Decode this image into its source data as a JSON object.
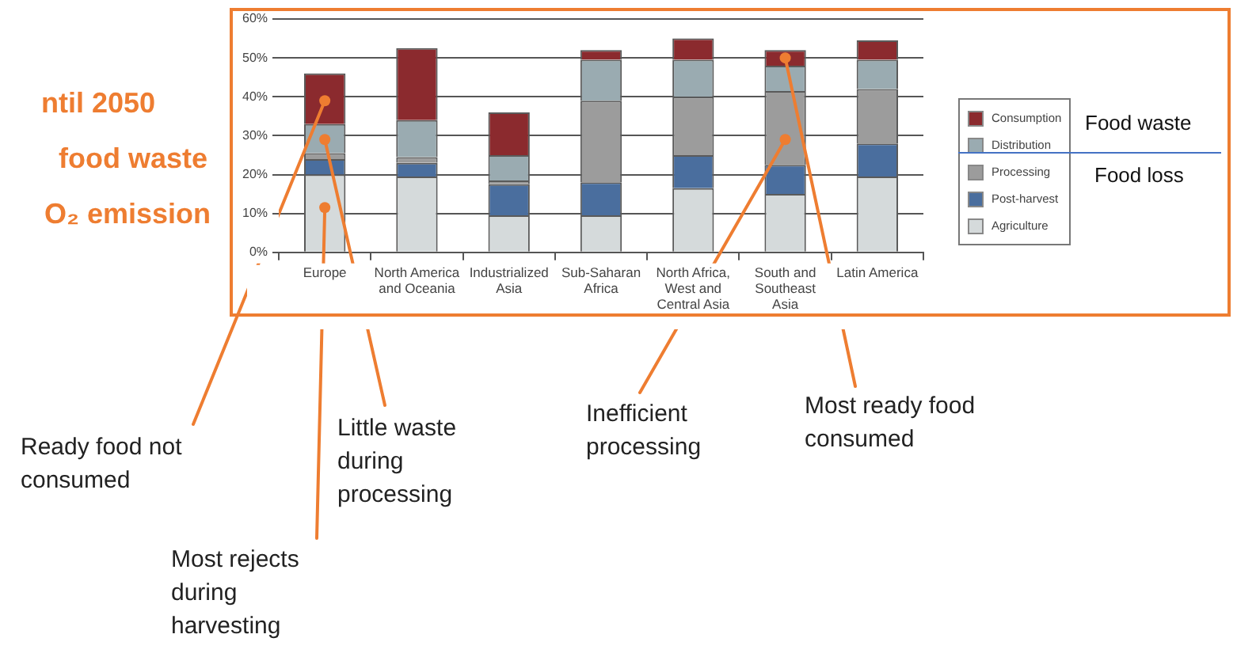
{
  "chart_data": {
    "type": "bar",
    "stacked": true,
    "categories": [
      "Europe",
      "North America and Oceania",
      "Industrialized Asia",
      "Sub-Saharan Africa",
      "North Africa, West and Central Asia",
      "South and Southeast Asia",
      "Latin America"
    ],
    "series": [
      {
        "name": "Agriculture",
        "color": "#d5dadb",
        "values": [
          20,
          19.5,
          9.5,
          9.5,
          16.5,
          15,
          19.5
        ]
      },
      {
        "name": "Post-harvest",
        "color": "#4a6e9e",
        "values": [
          4,
          3.5,
          8,
          8.5,
          8.5,
          7.5,
          8.5
        ]
      },
      {
        "name": "Processing",
        "color": "#9c9c9c",
        "values": [
          1.5,
          1.5,
          1,
          21,
          15,
          19,
          14
        ]
      },
      {
        "name": "Distribution",
        "color": "#9aabb1",
        "values": [
          7.5,
          9.5,
          6.5,
          10.5,
          9.5,
          6.5,
          7.5
        ]
      },
      {
        "name": "Consumption",
        "color": "#8b2a2e",
        "values": [
          13,
          18.5,
          11,
          2.5,
          5.5,
          4,
          5
        ]
      }
    ],
    "ylim": [
      0,
      60
    ],
    "yticks": [
      {
        "value": 0,
        "label": "0%"
      },
      {
        "value": 10,
        "label": "10%"
      },
      {
        "value": 20,
        "label": "20%"
      },
      {
        "value": 30,
        "label": "30%"
      },
      {
        "value": 40,
        "label": "40%"
      },
      {
        "value": 50,
        "label": "50%"
      },
      {
        "value": 60,
        "label": "60%"
      }
    ],
    "grid": "y",
    "legend": "right",
    "annotations": [
      "ntil 2050",
      "food waste",
      "O₂ emission",
      "Food waste",
      "Food loss",
      {
        "text": "Ready food not consumed",
        "x": "Europe",
        "y": 39
      },
      {
        "text": "Little waste during processing",
        "x": "Europe",
        "y": 29
      },
      {
        "text": "Most rejects during harvesting",
        "x": "Europe",
        "y": 11.5
      },
      {
        "text": "Inefficient processing",
        "x": "South and Southeast Asia",
        "y": 29
      },
      {
        "text": "Most ready food consumed",
        "x": "South and Southeast Asia",
        "y": 50
      }
    ]
  }
}
